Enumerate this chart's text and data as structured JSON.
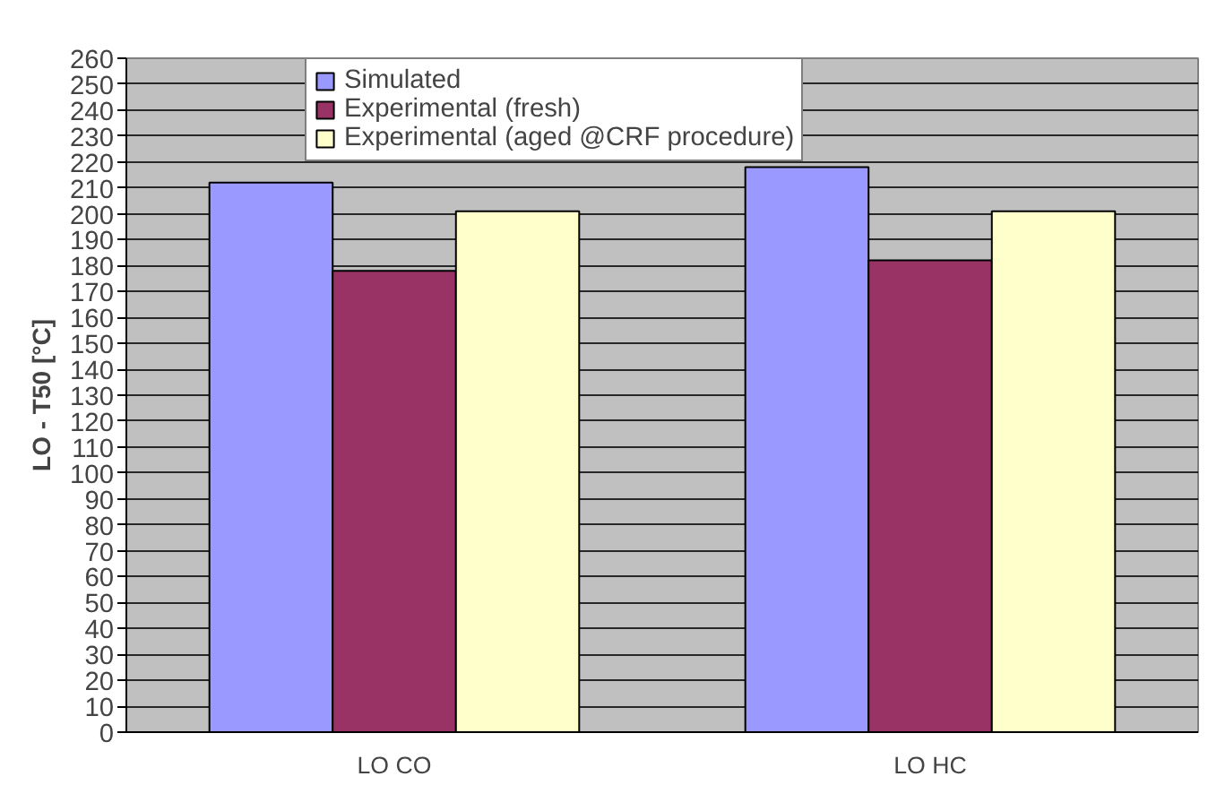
{
  "chart_data": {
    "type": "bar",
    "ylabel": "LO - T50 [°C]",
    "categories": [
      "LO CO",
      "LO HC"
    ],
    "series": [
      {
        "name": "Simulated",
        "color": "#9999ff",
        "values": [
          212,
          218
        ]
      },
      {
        "name": "Experimental (fresh)",
        "color": "#993366",
        "values": [
          178,
          182
        ]
      },
      {
        "name": "Experimental (aged @CRF procedure)",
        "color": "#ffffcc",
        "values": [
          201,
          201
        ]
      }
    ],
    "ylim": [
      0,
      260
    ],
    "yticks": [
      0,
      10,
      20,
      30,
      40,
      50,
      60,
      70,
      80,
      90,
      100,
      110,
      120,
      130,
      140,
      150,
      160,
      170,
      180,
      190,
      200,
      210,
      220,
      230,
      240,
      250,
      260
    ],
    "grid": "y",
    "legend": "top"
  }
}
